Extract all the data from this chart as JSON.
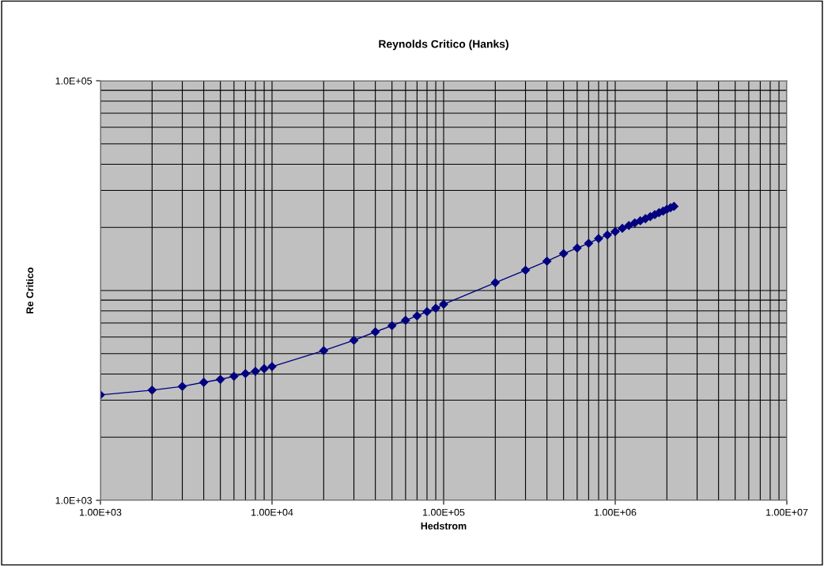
{
  "chart_data": {
    "type": "line",
    "title": "Reynolds Critico (Hanks)",
    "xlabel": "Hedstrom",
    "ylabel": "Re Critico",
    "log": "xy",
    "grid": true,
    "marker": "diamond",
    "line_style": "solid",
    "xlim": [
      1000,
      10000000
    ],
    "ylim": [
      1000,
      100000
    ],
    "xticks": [
      {
        "value": 1000,
        "label": "1.00E+03"
      },
      {
        "value": 10000,
        "label": "1.00E+04"
      },
      {
        "value": 100000,
        "label": "1.00E+05"
      },
      {
        "value": 1000000,
        "label": "1.00E+06"
      },
      {
        "value": 10000000,
        "label": "1.00E+07"
      }
    ],
    "yticks": [
      {
        "value": 1000,
        "label": "1.0E+03"
      },
      {
        "value": 100000,
        "label": "1.0E+05"
      }
    ],
    "series": [
      {
        "color": "#000080",
        "x": [
          1000,
          2000,
          3000,
          4000,
          5000,
          6000,
          7000,
          8000,
          9000,
          10000,
          20000,
          30000,
          40000,
          50000,
          60000,
          70000,
          80000,
          90000,
          100000,
          200000,
          300000,
          400000,
          500000,
          600000,
          700000,
          800000,
          900000,
          1000000,
          1100000,
          1200000,
          1300000,
          1400000,
          1500000,
          1600000,
          1700000,
          1800000,
          1900000,
          2000000,
          2100000,
          2200000
        ],
        "values": [
          3180,
          3350,
          3490,
          3650,
          3770,
          3900,
          4020,
          4120,
          4240,
          4340,
          5170,
          5790,
          6350,
          6800,
          7210,
          7570,
          7930,
          8240,
          8600,
          10900,
          12500,
          13800,
          15000,
          15950,
          16800,
          17700,
          18400,
          19100,
          19800,
          20400,
          21000,
          21500,
          22000,
          22500,
          23000,
          23500,
          23900,
          24400,
          24800,
          25200
        ]
      }
    ]
  }
}
